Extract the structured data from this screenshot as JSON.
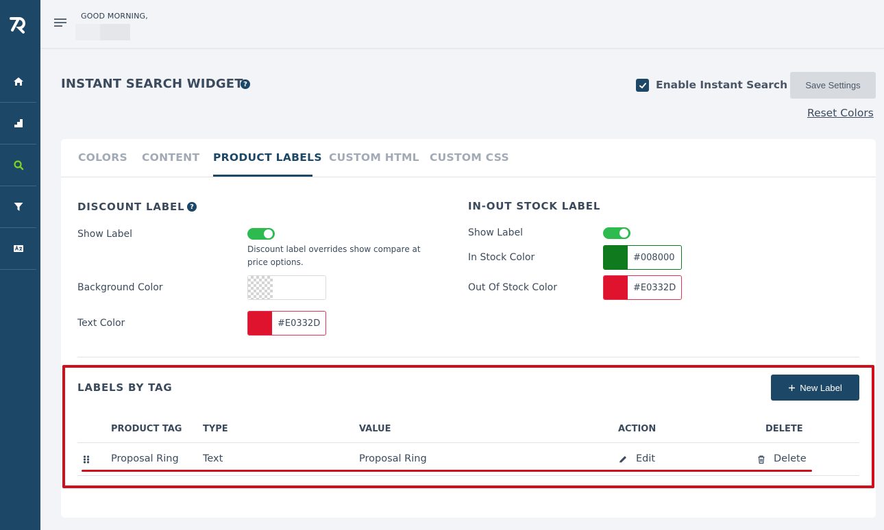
{
  "header": {
    "greeting": "GOOD MORNING,"
  },
  "sidebar": {
    "items": [
      {
        "icon": "home-icon"
      },
      {
        "icon": "chart-icon"
      },
      {
        "icon": "search-icon",
        "active": true
      },
      {
        "icon": "filter-icon"
      },
      {
        "icon": "translate-icon"
      }
    ],
    "active_color": "#7ed321"
  },
  "page": {
    "title": "INSTANT SEARCH WIDGET",
    "help": "?",
    "enable_label": "Enable Instant Search",
    "enable_checked": true,
    "save_label": "Save Settings",
    "reset_label": "Reset Colors"
  },
  "tabs": [
    {
      "label": "COLORS"
    },
    {
      "label": "CONTENT"
    },
    {
      "label": "PRODUCT LABELS",
      "active": true
    },
    {
      "label": "CUSTOM HTML"
    },
    {
      "label": "CUSTOM CSS"
    }
  ],
  "discount": {
    "title": "DISCOUNT LABEL",
    "show_label": "Show Label",
    "show_on": true,
    "note": "Discount label overrides show compare at price options.",
    "bg_label": "Background Color",
    "bg_value": "",
    "text_label": "Text Color",
    "text_value": "#E0332D",
    "text_color": "#E0332D"
  },
  "stock": {
    "title": "IN-OUT STOCK LABEL",
    "show_label": "Show Label",
    "show_on": true,
    "in_label": "In Stock Color",
    "in_value": "#008000",
    "in_color": "#008000",
    "out_label": "Out Of Stock Color",
    "out_value": "#E0332D",
    "out_color": "#E0332D"
  },
  "tags": {
    "title": "LABELS BY TAG",
    "new_label": "New Label",
    "columns": [
      "PRODUCT TAG",
      "TYPE",
      "VALUE",
      "ACTION",
      "DELETE"
    ],
    "rows": [
      {
        "tag": "Proposal Ring",
        "type": "Text",
        "value": "Proposal Ring",
        "action": "Edit",
        "delete": "Delete"
      }
    ]
  },
  "colors": {
    "brand": "#1C4766",
    "toggle_on": "#2DBB4F",
    "highlight": "#D00F1C"
  }
}
